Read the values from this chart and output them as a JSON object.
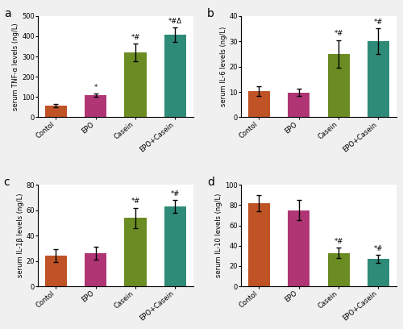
{
  "subplots": [
    {
      "label": "a",
      "ylabel": "serum TNF-α levels (ng/L)",
      "ylim": [
        0,
        500
      ],
      "yticks": [
        0,
        100,
        200,
        300,
        400,
        500
      ],
      "categories": [
        "Contol",
        "EPO",
        "Casein",
        "EPO+Casein"
      ],
      "values": [
        58,
        108,
        320,
        408
      ],
      "errors": [
        8,
        8,
        45,
        35
      ],
      "colors": [
        "#bf5325",
        "#b03575",
        "#6b8c23",
        "#2e8b78"
      ],
      "sig_labels": [
        "",
        "*",
        "*#",
        "*#Δ"
      ]
    },
    {
      "label": "b",
      "ylabel": "serum IL-6 levels (ng/L)",
      "ylim": [
        0,
        40
      ],
      "yticks": [
        0,
        10,
        20,
        30,
        40
      ],
      "categories": [
        "Contol",
        "EPO",
        "Casein",
        "EPO+Casein"
      ],
      "values": [
        10.3,
        9.8,
        25,
        30
      ],
      "errors": [
        1.8,
        1.5,
        5.5,
        5.0
      ],
      "colors": [
        "#bf5325",
        "#b03575",
        "#6b8c23",
        "#2e8b78"
      ],
      "sig_labels": [
        "",
        "",
        "*#",
        "*#"
      ]
    },
    {
      "label": "c",
      "ylabel": "serum IL-1β levels (ng/L)",
      "ylim": [
        0,
        80
      ],
      "yticks": [
        0,
        20,
        40,
        60,
        80
      ],
      "categories": [
        "Contol",
        "EPO",
        "Casein",
        "EPO+Casein"
      ],
      "values": [
        24,
        26,
        54,
        63
      ],
      "errors": [
        5,
        5,
        8,
        5
      ],
      "colors": [
        "#bf5325",
        "#b03575",
        "#6b8c23",
        "#2e8b78"
      ],
      "sig_labels": [
        "",
        "",
        "*#",
        "*#"
      ]
    },
    {
      "label": "d",
      "ylabel": "serum IL-10 levels (ng/L)",
      "ylim": [
        0,
        100
      ],
      "yticks": [
        0,
        20,
        40,
        60,
        80,
        100
      ],
      "categories": [
        "Contol",
        "EPO",
        "Casein",
        "EPO+Casein"
      ],
      "values": [
        82,
        75,
        33,
        27
      ],
      "errors": [
        8,
        10,
        5,
        4
      ],
      "colors": [
        "#bf5325",
        "#b03575",
        "#6b8c23",
        "#2e8b78"
      ],
      "sig_labels": [
        "",
        "",
        "*#",
        "*#"
      ]
    }
  ],
  "background_color": "#ffffff",
  "fig_bg": "#f0f0f0"
}
